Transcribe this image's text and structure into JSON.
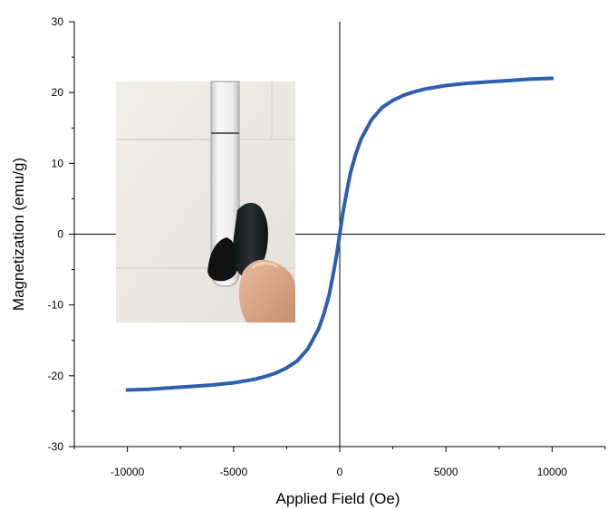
{
  "chart_data": {
    "type": "line",
    "xlabel": "Applied Field (Oe)",
    "ylabel": "Magnetization (emu/g)",
    "xlim": [
      -12500,
      12500
    ],
    "ylim": [
      -30,
      30
    ],
    "x_ticks": [
      -10000,
      -5000,
      0,
      5000,
      10000
    ],
    "y_ticks": [
      -30,
      -20,
      -10,
      0,
      10,
      20,
      30
    ],
    "x_tick_labels": [
      "-10000",
      "-5000",
      "0",
      "5000",
      "10000"
    ],
    "y_tick_labels": [
      "-30",
      "-20",
      "-10",
      "0",
      "10",
      "20",
      "30"
    ],
    "grid": false,
    "legend": "none",
    "series": [
      {
        "color": "#2e5fae",
        "x": [
          -10000,
          -9000,
          -8000,
          -7000,
          -6000,
          -5000,
          -4000,
          -3500,
          -3000,
          -2500,
          -2000,
          -1500,
          -1000,
          -750,
          -500,
          -300,
          -150,
          0,
          150,
          300,
          500,
          750,
          1000,
          1500,
          2000,
          2500,
          3000,
          3500,
          4000,
          5000,
          6000,
          7000,
          8000,
          9000,
          10000
        ],
        "y": [
          -22.0,
          -21.9,
          -21.7,
          -21.5,
          -21.3,
          -21.0,
          -20.5,
          -20.1,
          -19.6,
          -18.9,
          -17.9,
          -16.2,
          -13.4,
          -11.3,
          -8.6,
          -5.5,
          -3.0,
          0,
          3.0,
          5.5,
          8.6,
          11.3,
          13.4,
          16.2,
          17.9,
          18.9,
          19.6,
          20.1,
          20.5,
          21.0,
          21.3,
          21.5,
          21.7,
          21.9,
          22.0
        ]
      }
    ],
    "inset": "photo: vial of black magnetic powder attracted to a magnet held by fingers"
  }
}
